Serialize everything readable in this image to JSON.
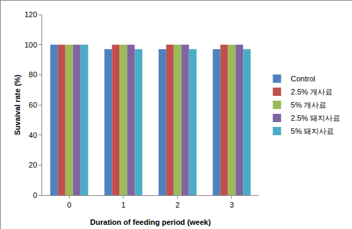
{
  "chart_data": {
    "type": "bar",
    "x_label": "Duration of feeding period (week)",
    "y_label": "Suvaival rate (%)",
    "categories": [
      "0",
      "1",
      "2",
      "3"
    ],
    "series": [
      {
        "name": "Control",
        "color": "#4f81bd",
        "values": [
          100,
          97,
          97,
          97
        ]
      },
      {
        "name": "2.5% 개사료",
        "color": "#c0504d",
        "values": [
          100,
          100,
          100,
          100
        ]
      },
      {
        "name": "5% 개사료",
        "color": "#9bbb59",
        "values": [
          100,
          100,
          100,
          100
        ]
      },
      {
        "name": "2.5% 돼지사료",
        "color": "#8064a2",
        "values": [
          100,
          100,
          100,
          100
        ]
      },
      {
        "name": "5% 돼지사료",
        "color": "#4bacc6",
        "values": [
          100,
          97,
          97,
          97
        ]
      }
    ],
    "ylim": [
      0,
      120
    ],
    "yticks": [
      0,
      20,
      40,
      60,
      80,
      100,
      120
    ],
    "grid": false,
    "legend": "right"
  }
}
